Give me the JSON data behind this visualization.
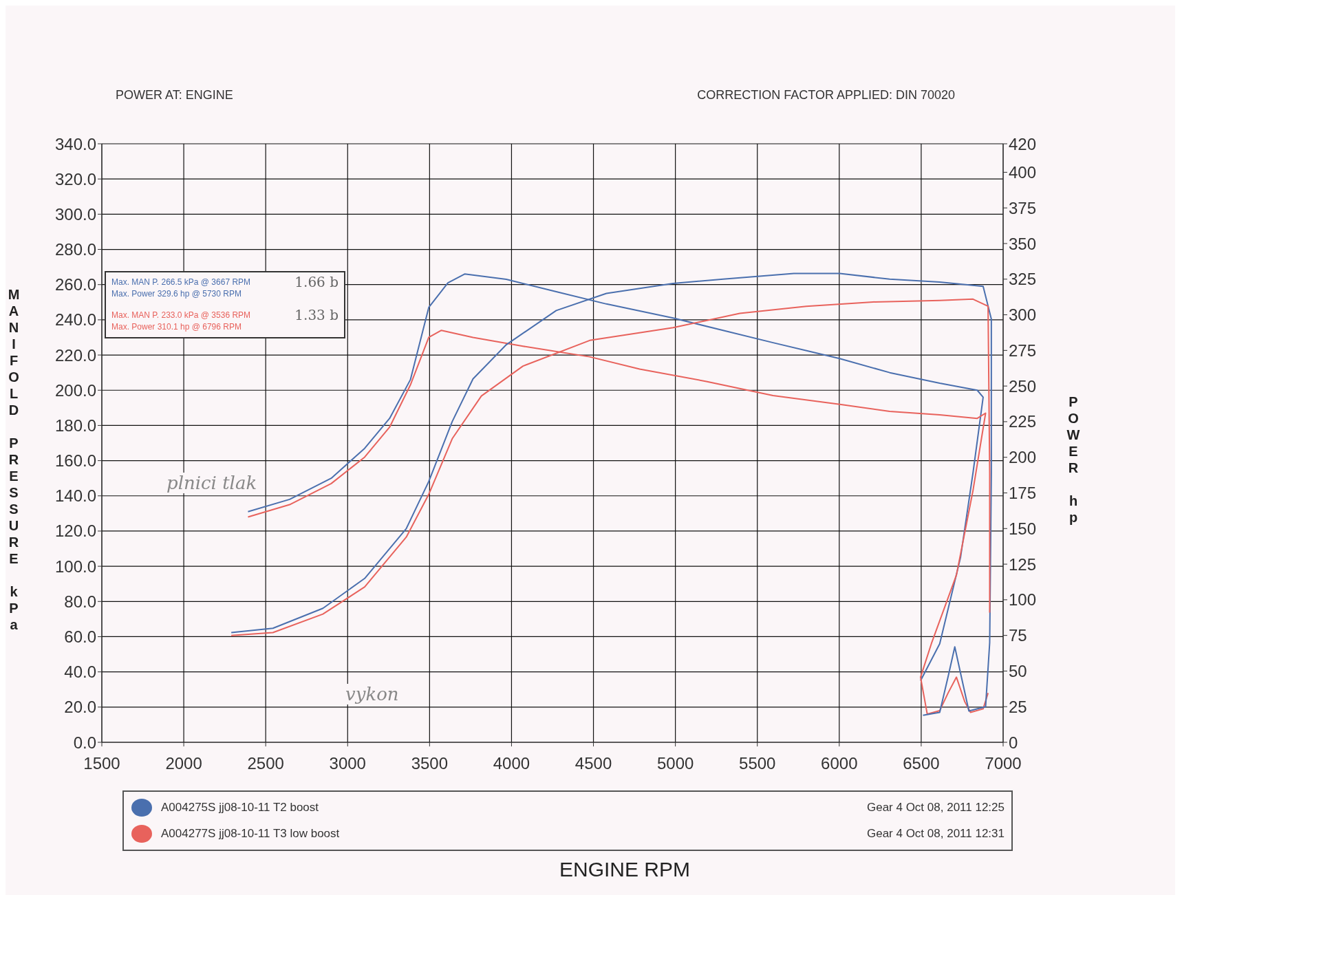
{
  "chart_data": {
    "type": "line",
    "xlabel": "ENGINE RPM",
    "ylabel": "MANIFOLD PRESSURE kPa",
    "y2label": "POWER hp",
    "annotations": [
      "POWER AT: ENGINE",
      "CORRECTION FACTOR APPLIED: DIN 70020",
      "Max. MAN P. 266.5 kPa @ 3667 RPM",
      "Max. Power 329.6 hp @ 5730 RPM",
      "1.66 b",
      "Max. MAN P. 233.0 kPa @ 3536 RPM",
      "Max. Power 310.1 hp @ 6796 RPM",
      "1.33 b",
      "plnici tlak",
      "vykon",
      "Gear 4 Oct 08, 2011 12:25",
      "Gear 4 Oct 08, 2011 12:31"
    ],
    "xlim": [
      1500,
      7000
    ],
    "xticks": [
      1500,
      2000,
      2500,
      3000,
      3500,
      4000,
      4500,
      5000,
      5500,
      6000,
      6500,
      7000
    ],
    "ylim": [
      0,
      340
    ],
    "yticks": [
      {
        "value": 0,
        "label": "0.0"
      },
      {
        "value": 20,
        "label": "20.0"
      },
      {
        "value": 40,
        "label": "40.0"
      },
      {
        "value": 60,
        "label": "60.0"
      },
      {
        "value": 80,
        "label": "80.0"
      },
      {
        "value": 100,
        "label": "100.0"
      },
      {
        "value": 120,
        "label": "120.0"
      },
      {
        "value": 140,
        "label": "140.0"
      },
      {
        "value": 160,
        "label": "160.0"
      },
      {
        "value": 180,
        "label": "180.0"
      },
      {
        "value": 200,
        "label": "200.0"
      },
      {
        "value": 220,
        "label": "220.0"
      },
      {
        "value": 240,
        "label": "240.0"
      },
      {
        "value": 260,
        "label": "260.0"
      },
      {
        "value": 280,
        "label": "280.0"
      },
      {
        "value": 300,
        "label": "300.0"
      },
      {
        "value": 320,
        "label": "320.0"
      },
      {
        "value": 340,
        "label": "340.0"
      }
    ],
    "y2lim": [
      0,
      420
    ],
    "y2ticks": [
      0,
      25,
      50,
      75,
      100,
      125,
      150,
      175,
      200,
      225,
      250,
      275,
      300,
      325,
      350,
      375,
      400,
      420
    ],
    "grid": true,
    "legend": "bottom",
    "series": [
      {
        "name": "A004275S jj08-10-11 T2 boost",
        "color": "#4a6fae",
        "x": [
          2392,
          2646,
          2900,
          3104,
          3256,
          3383,
          3495,
          3612,
          3714,
          3968,
          4273,
          4579,
          4986,
          5291,
          5596,
          6003,
          6308,
          6613,
          6842,
          6878,
          6816,
          6740,
          6613,
          6496
        ],
        "values": [
          131,
          138,
          150,
          167,
          184,
          206,
          247,
          261,
          266,
          263,
          256,
          249,
          241,
          234,
          227,
          218,
          210,
          204,
          200,
          196,
          153,
          105,
          56,
          35
        ]
      },
      {
        "name": "A004277S jj08-10-11 T3 low boost",
        "color": "#e8625c",
        "x": [
          2392,
          2646,
          2900,
          3104,
          3256,
          3383,
          3495,
          3572,
          3765,
          4070,
          4477,
          4782,
          5189,
          5596,
          6003,
          6308,
          6613,
          6842,
          6893,
          6816,
          6715,
          6562,
          6496,
          6537,
          6613,
          6664,
          6715,
          6766,
          6801,
          6878,
          6908
        ],
        "values": [
          128,
          135,
          147,
          162,
          179,
          203,
          230,
          234,
          230,
          225,
          219,
          212,
          205,
          197,
          192,
          188,
          186,
          184,
          187,
          143,
          95,
          56,
          37,
          16,
          18,
          28,
          37,
          23,
          17,
          19,
          28
        ]
      },
      {
        "color": "#4a6fae",
        "axis": "y2",
        "x": [
          2290,
          2544,
          2849,
          3104,
          3358,
          3495,
          3638,
          3765,
          3968,
          4273,
          4579,
          4986,
          5291,
          5723,
          6003,
          6308,
          6613,
          6878,
          6928,
          6928,
          6918,
          6893,
          6791,
          6745,
          6705,
          6664,
          6613,
          6511
        ],
        "values": [
          77,
          80,
          94,
          115,
          150,
          183,
          225,
          255,
          279,
          303,
          315,
          322,
          325,
          329,
          329,
          325,
          323,
          320,
          297,
          189,
          70,
          25,
          22,
          46,
          67,
          46,
          21,
          19
        ]
      },
      {
        "color": "#e8625c",
        "axis": "y2",
        "x": [
          2290,
          2544,
          2849,
          3104,
          3358,
          3495,
          3638,
          3816,
          4070,
          4477,
          4986,
          5393,
          5799,
          6206,
          6613,
          6816,
          6908,
          6918,
          6918
        ],
        "values": [
          75,
          77,
          90,
          109,
          144,
          174,
          213,
          243,
          264,
          282,
          291,
          301,
          306,
          309,
          310,
          311,
          306,
          189,
          91
        ]
      }
    ]
  }
}
